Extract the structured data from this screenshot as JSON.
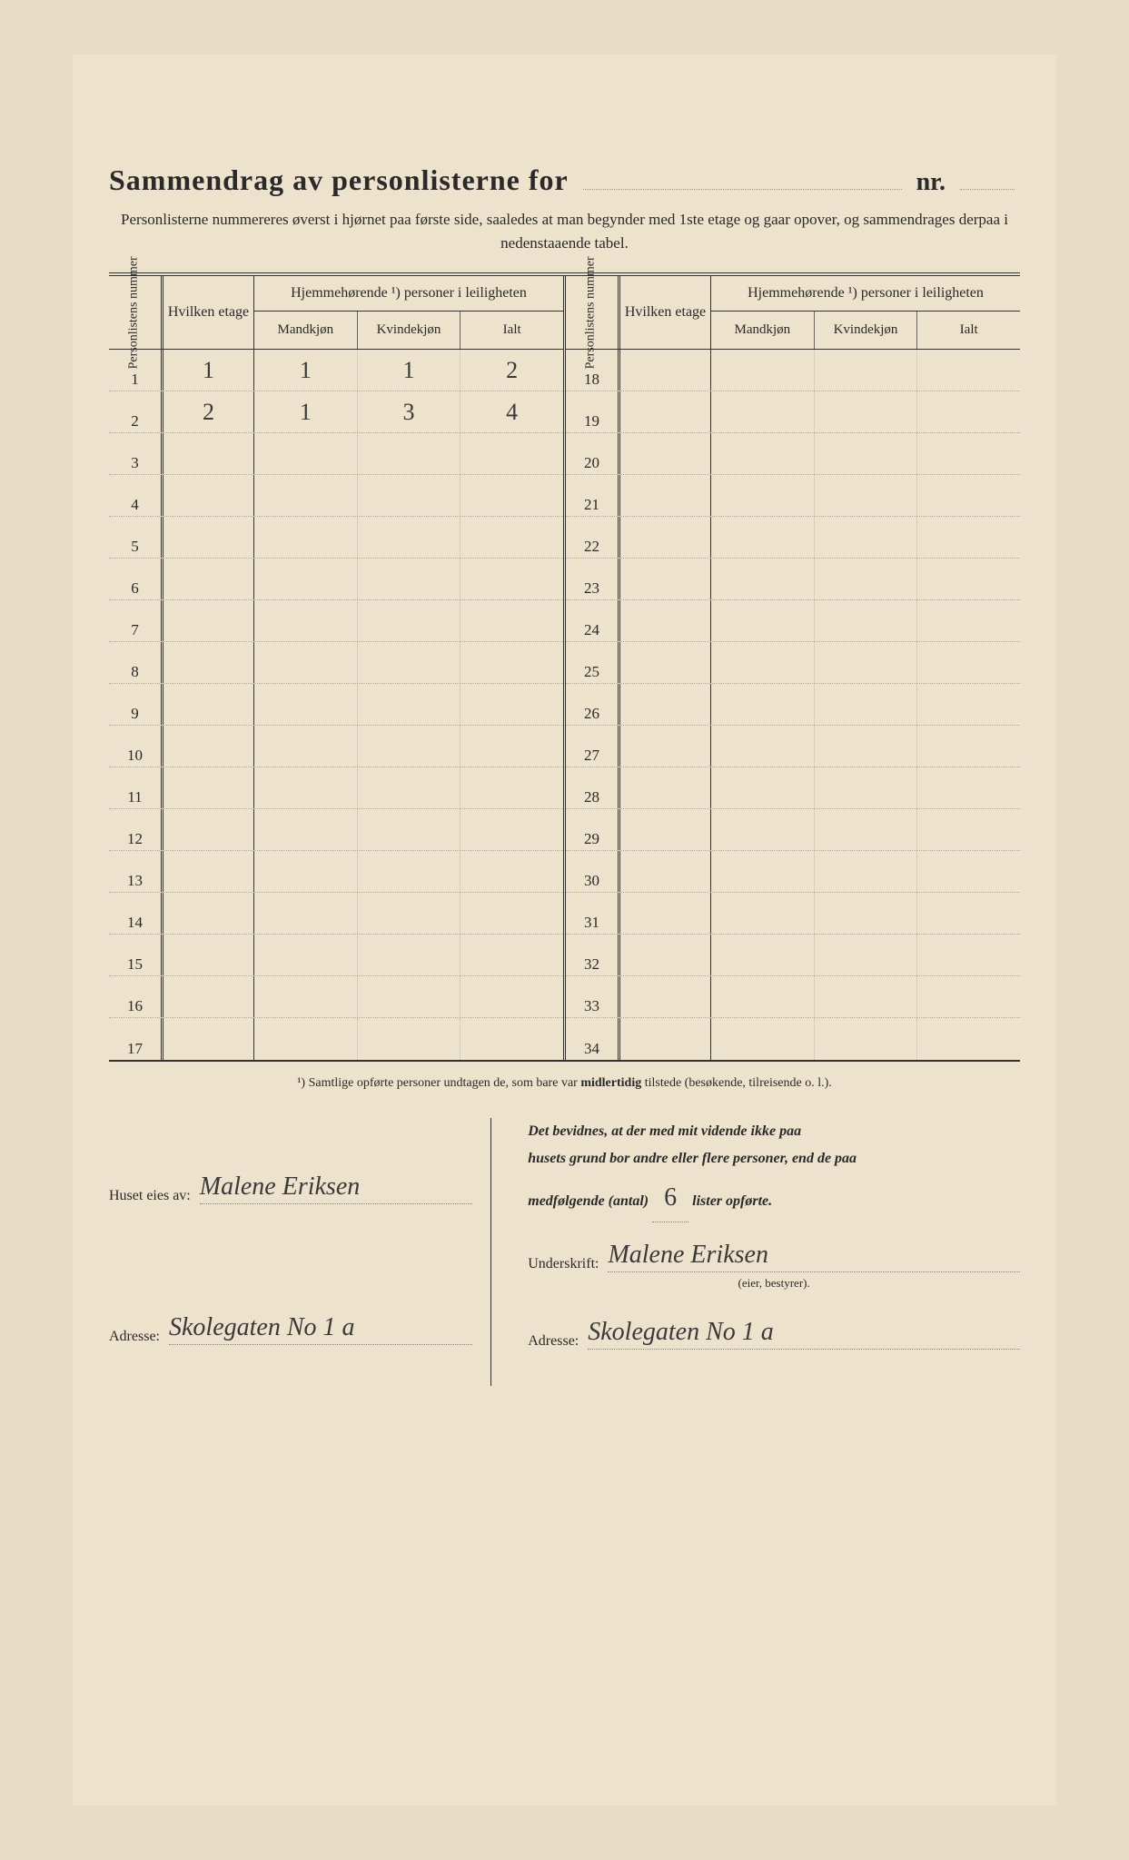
{
  "colors": {
    "paper_bg": "#ede2cc",
    "outer_bg": "#e8dcc5",
    "text": "#2a2a2a",
    "rule": "#333333",
    "dotted": "#aaaaaa",
    "handwriting": "#3a3a3a"
  },
  "title": {
    "main": "Sammendrag av personlisterne for",
    "nr": "nr."
  },
  "subtitle": "Personlisterne nummereres øverst i hjørnet paa første side, saaledes at man begynder med 1ste etage og gaar opover, og sammendrages derpaa i nedenstaaende tabel.",
  "table": {
    "headers": {
      "personlistens_nummer": "Personlistens nummer",
      "hvilken_etage": "Hvilken etage",
      "hjemmehorende_title": "Hjemmehørende ¹) personer i leiligheten",
      "mandkjon": "Mandkjøn",
      "kvindekjon": "Kvindekjøn",
      "ialt": "Ialt"
    },
    "left_rows": [
      {
        "n": "1",
        "etage": "1",
        "m": "1",
        "k": "1",
        "i": "2"
      },
      {
        "n": "2",
        "etage": "2",
        "m": "1",
        "k": "3",
        "i": "4"
      },
      {
        "n": "3"
      },
      {
        "n": "4"
      },
      {
        "n": "5"
      },
      {
        "n": "6"
      },
      {
        "n": "7"
      },
      {
        "n": "8"
      },
      {
        "n": "9"
      },
      {
        "n": "10"
      },
      {
        "n": "11"
      },
      {
        "n": "12"
      },
      {
        "n": "13"
      },
      {
        "n": "14"
      },
      {
        "n": "15"
      },
      {
        "n": "16"
      },
      {
        "n": "17"
      }
    ],
    "right_rows": [
      {
        "n": "18"
      },
      {
        "n": "19"
      },
      {
        "n": "20"
      },
      {
        "n": "21"
      },
      {
        "n": "22"
      },
      {
        "n": "23"
      },
      {
        "n": "24"
      },
      {
        "n": "25"
      },
      {
        "n": "26"
      },
      {
        "n": "27"
      },
      {
        "n": "28"
      },
      {
        "n": "29"
      },
      {
        "n": "30"
      },
      {
        "n": "31"
      },
      {
        "n": "32"
      },
      {
        "n": "33"
      },
      {
        "n": "34"
      }
    ]
  },
  "footnote": "¹) Samtlige opførte personer undtagen de, som bare var midlertidig tilstede (besøkende, tilreisende o. l.).",
  "bottom": {
    "huset_eies_av_label": "Huset eies av:",
    "huset_eies_av_value": "Malene Eriksen",
    "adresse_label": "Adresse:",
    "adresse_left_value": "Skolegaten No 1 a",
    "attest_line1": "Det bevidnes, at der med mit vidende ikke paa",
    "attest_line2": "husets grund bor andre eller flere personer, end de paa",
    "attest_line3_pre": "medfølgende (antal)",
    "attest_count": "6",
    "attest_line3_post": "lister opførte.",
    "underskrift_label": "Underskrift:",
    "underskrift_value": "Malene Eriksen",
    "underskrift_sub": "(eier, bestyrer).",
    "adresse_right_value": "Skolegaten No 1 a"
  }
}
